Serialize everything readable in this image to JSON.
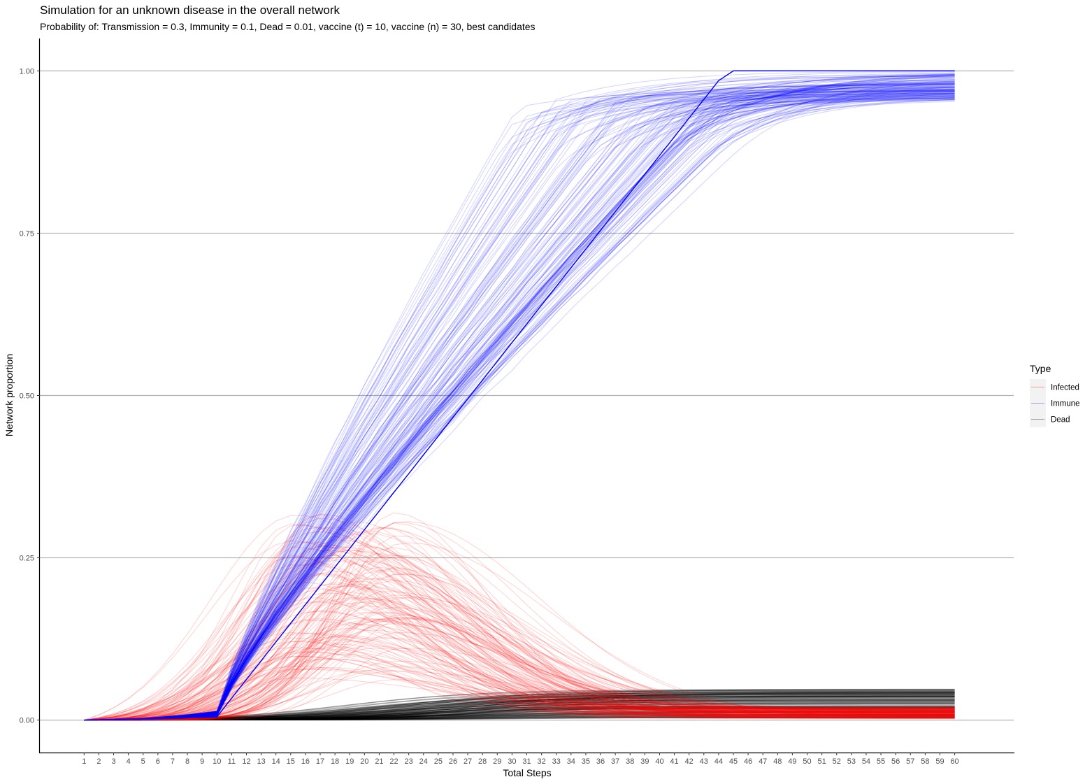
{
  "chart_data": {
    "type": "line",
    "title": "Simulation for an unknown disease in the overall network",
    "subtitle": "Probability of: Transmission = 0.3, Immunity = 0.1, Dead = 0.01, vaccine (t) = 10, vaccine (n) = 30, best candidates",
    "xlabel": "Total Steps",
    "ylabel": "Network proportion",
    "x": [
      1,
      2,
      3,
      4,
      5,
      6,
      7,
      8,
      9,
      10,
      11,
      12,
      13,
      14,
      15,
      16,
      17,
      18,
      19,
      20,
      21,
      22,
      23,
      24,
      25,
      26,
      27,
      28,
      29,
      30,
      31,
      32,
      33,
      34,
      35,
      36,
      37,
      38,
      39,
      40,
      41,
      42,
      43,
      44,
      45,
      46,
      47,
      48,
      49,
      50,
      51,
      52,
      53,
      54,
      55,
      56,
      57,
      58,
      59,
      60
    ],
    "x_tick_labels": [
      "1",
      "2",
      "3",
      "4",
      "5",
      "6",
      "7",
      "8",
      "9",
      "10",
      "11",
      "12",
      "13",
      "14",
      "15",
      "16",
      "17",
      "18",
      "19",
      "20",
      "21",
      "22",
      "23",
      "24",
      "25",
      "26",
      "27",
      "28",
      "29",
      "30",
      "31",
      "32",
      "33",
      "34",
      "35",
      "36",
      "37",
      "38",
      "39",
      "40",
      "41",
      "42",
      "43",
      "44",
      "45",
      "46",
      "47",
      "48",
      "49",
      "50",
      "51",
      "52",
      "53",
      "54",
      "55",
      "56",
      "57",
      "58",
      "59",
      "60"
    ],
    "xlim": [
      -2,
      64
    ],
    "ylim": [
      -0.05,
      1.05
    ],
    "y_ticks": [
      0,
      0.25,
      0.5,
      0.75,
      1
    ],
    "y_tick_labels": [
      "0.00",
      "0.25",
      "0.50",
      "0.75",
      "1.00"
    ],
    "grid": "horizontal-major",
    "legend": {
      "title": "Type",
      "position": "right",
      "entries": [
        {
          "label": "Infected",
          "color": "#ff0000"
        },
        {
          "label": "Immune",
          "color": "#0000ff"
        },
        {
          "label": "Dead",
          "color": "#000000"
        }
      ]
    },
    "runs": 150,
    "series_summary": [
      {
        "name": "Infected",
        "color": "#ff0000",
        "start": 0,
        "peak_range": [
          0.05,
          0.32
        ],
        "peak_step_range": [
          15,
          23
        ],
        "end_range": [
          0.002,
          0.02
        ]
      },
      {
        "name": "Immune",
        "color": "#0000ff",
        "start": 0,
        "value_at_step_10": 0.01,
        "reaches_plateau_step_range": [
          29,
          45
        ],
        "end_range": [
          0.955,
          1.0
        ]
      },
      {
        "name": "Dead",
        "color": "#000000",
        "start": 0,
        "end_range": [
          0.003,
          0.048
        ]
      }
    ]
  }
}
